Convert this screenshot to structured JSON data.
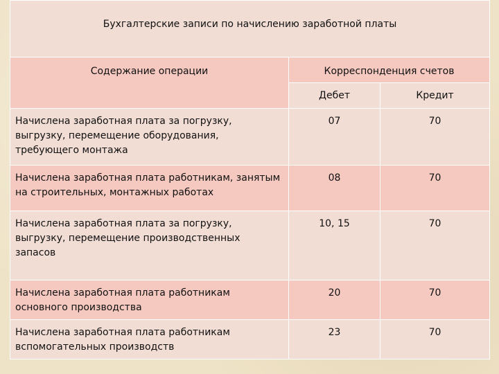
{
  "title": "Бухгалтерские записи по начислению заработной платы",
  "headers": {
    "operation": "Содержание операции",
    "correspondence": "Корреспонденция счетов",
    "debit": "Дебет",
    "credit": "Кредит"
  },
  "rows": [
    {
      "operation": "Начислена заработная плата за погрузку, выгрузку, перемещение оборудования, требующего монтажа",
      "debit": "07",
      "credit": "70"
    },
    {
      "operation": "Начислена заработная плата работникам, занятым на строительных, монтажных работах",
      "debit": "08",
      "credit": "70"
    },
    {
      "operation": "Начислена заработная плата за погрузку, выгрузку, перемещение производственных запасов",
      "debit": "10, 15",
      "credit": "70"
    },
    {
      "operation": "Начислена заработная плата работникам основного производства",
      "debit": "20",
      "credit": "70"
    },
    {
      "operation": "Начислена заработная плата работникам вспомогательных производств",
      "debit": "23",
      "credit": "70"
    }
  ]
}
